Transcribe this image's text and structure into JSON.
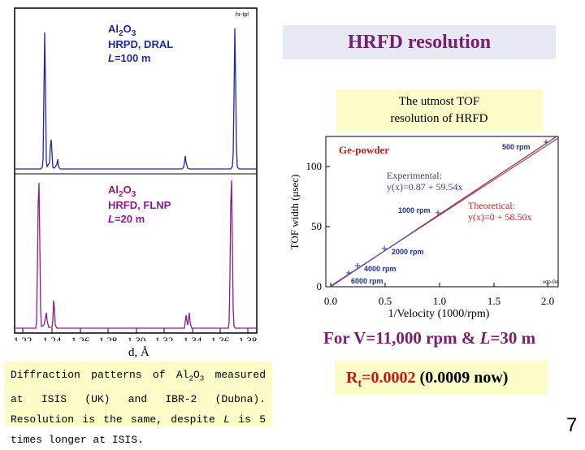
{
  "title": "HRFD resolution",
  "note": [
    "The utmost TOF",
    "resolution of HRFD"
  ],
  "patterns": {
    "top": {
      "material": "Al",
      "sub1": "2",
      "mat2": "O",
      "sub2": "3",
      "instrument": "HRPD, DRAL",
      "length_label": "L",
      "length_value": "=100 m",
      "corner": "hr-tpl"
    },
    "bottom": {
      "material": "Al",
      "sub1": "2",
      "mat2": "O",
      "sub2": "3",
      "instrument": "HRFD, FLNP",
      "length_label": "L",
      "length_value": "=20 m"
    },
    "x_ticks": [
      "1.22",
      "1.24",
      "1.26",
      "1.28",
      "1.30",
      "1.32",
      "1.34",
      "1.36",
      "1.38"
    ],
    "x_label": "d, Å",
    "colors": {
      "top": "#1d2a9a",
      "bottom": "#8e1a8e"
    }
  },
  "tof_plot": {
    "sample": "Ge-powder",
    "y_label": "TOF width (μsec)",
    "y_ticks": [
      "0",
      "50",
      "100"
    ],
    "x_ticks": [
      "0.0",
      "0.5",
      "1.0",
      "1.5",
      "2.0"
    ],
    "x_label": "1/Velocity (1000/rpm)",
    "experimental": [
      "Experimental:",
      "y(x)=0.87 + 59.54x"
    ],
    "theoretical": [
      "Theoretical:",
      "y(x)=0 + 58.50x"
    ],
    "corner": "vdo-Ge",
    "points_label": [
      "500 rpm",
      "1000 rpm",
      "2000 rpm",
      "4000 rpm",
      "6000 rpm"
    ],
    "colors": {
      "experimental": "#3a3aa8",
      "theoretical": "#d02020"
    }
  },
  "condition": {
    "prefix": "For V=11,000 rpm & ",
    "var": "L",
    "suffix": "=30 m"
  },
  "description": {
    "part1": "Diffraction patterns of Al",
    "sub1": "2",
    "part2": "O",
    "sub2": "3",
    "part3": " measured at ISIS (UK) and IBR-2 (Dubna). Resolution is the same, despite ",
    "var": "L",
    "part4": " is 5 times longer at ISIS."
  },
  "result": {
    "r": "R",
    "sub": "t",
    "value": "=0.0002",
    "now": " (0.0009 now)"
  },
  "page_number": "7"
}
